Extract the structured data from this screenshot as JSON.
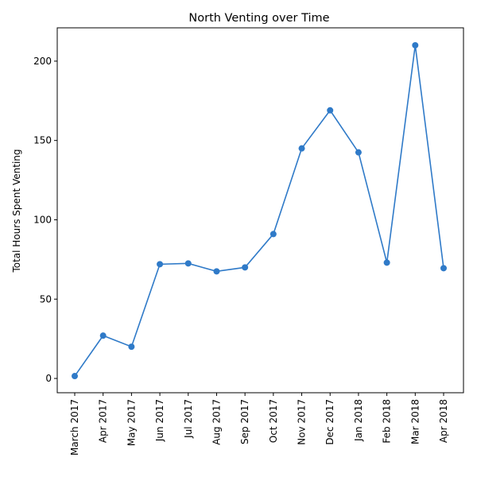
{
  "chart_data": {
    "type": "line",
    "title": "North Venting over Time",
    "xlabel": "",
    "ylabel": "Total Hours Spent Venting",
    "categories": [
      "March 2017",
      "Apr 2017",
      "May 2017",
      "Jun 2017",
      "Jul 2017",
      "Aug 2017",
      "Sep 2017",
      "Oct 2017",
      "Nov 2017",
      "Dec 2017",
      "Jan 2018",
      "Feb 2018",
      "Mar 2018",
      "Apr 2018"
    ],
    "series": [
      {
        "values": [
          1.5,
          27,
          20,
          72,
          72.5,
          67.5,
          70,
          91,
          145,
          169,
          142.5,
          73,
          210,
          69.5
        ],
        "color": "#2f7ac8",
        "marker": "circle"
      }
    ],
    "yticks": [
      0,
      50,
      100,
      150,
      200
    ],
    "ylim": [
      -9,
      221
    ],
    "grid": false,
    "legend": "none"
  }
}
